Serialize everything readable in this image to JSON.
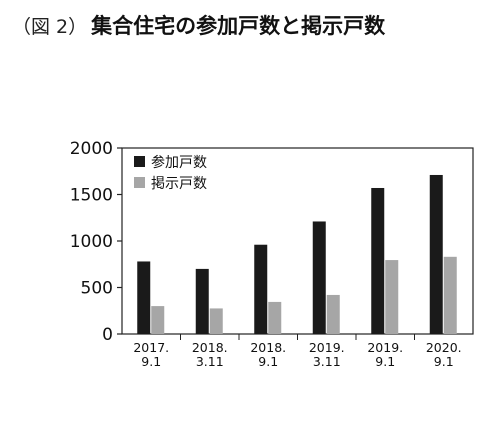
{
  "figure": {
    "label": "（図 2）",
    "title": "集合住宅の参加戸数と掲示戸数"
  },
  "chart_data": {
    "type": "bar",
    "categories": [
      [
        "2017.",
        "9.1"
      ],
      [
        "2018.",
        "3.11"
      ],
      [
        "2018.",
        "9.1"
      ],
      [
        "2019.",
        "3.11"
      ],
      [
        "2019.",
        "9.1"
      ],
      [
        "2020.",
        "9.1"
      ]
    ],
    "series": [
      {
        "name": "参加戸数",
        "color": "#1a1a1a",
        "values": [
          780,
          700,
          960,
          1210,
          1570,
          1710
        ]
      },
      {
        "name": "掲示戸数",
        "color": "#a6a6a6",
        "values": [
          300,
          275,
          345,
          420,
          795,
          830
        ]
      }
    ],
    "yticks": [
      "0",
      "500",
      "1000",
      "1500",
      "2000"
    ],
    "ylim": [
      0,
      2000
    ],
    "xlabel": "",
    "ylabel": "",
    "grid": false,
    "legend": "top-left"
  }
}
